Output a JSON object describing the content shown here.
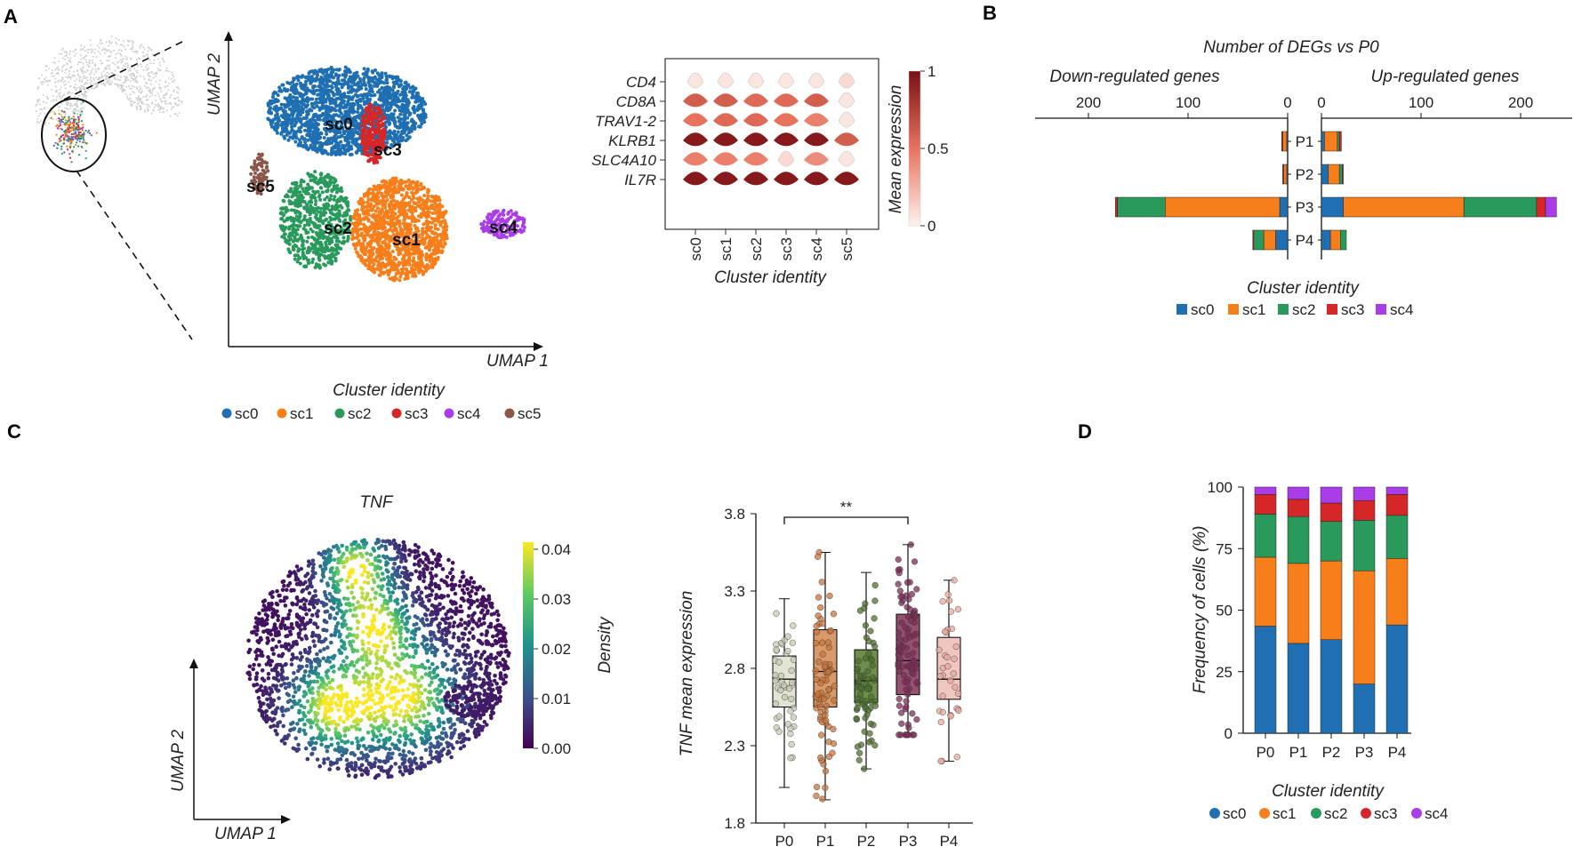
{
  "panel_labels": [
    "A",
    "B",
    "C",
    "D"
  ],
  "cluster_colors": {
    "sc0": "#1f6fb2",
    "sc1": "#f77f1b",
    "sc2": "#2a9a5c",
    "sc3": "#d62728",
    "sc4": "#a93ee8",
    "sc5": "#8c564b"
  },
  "chart_data": [
    {
      "id": "A_umap",
      "type": "scatter",
      "xlabel": "UMAP 1",
      "ylabel": "UMAP 2",
      "legend_title": "Cluster identity",
      "clusters": [
        "sc0",
        "sc1",
        "sc2",
        "sc3",
        "sc4",
        "sc5"
      ]
    },
    {
      "id": "A_violin",
      "type": "heatmap",
      "subtype": "stacked-violin",
      "genes": [
        "CD4",
        "CD8A",
        "TRAV1-2",
        "KLRB1",
        "SLC4A10",
        "IL7R"
      ],
      "clusters": [
        "sc0",
        "sc1",
        "sc2",
        "sc3",
        "sc4",
        "sc5"
      ],
      "mean_expression": [
        [
          0.05,
          0.05,
          0.05,
          0.05,
          0.05,
          0.1
        ],
        [
          0.6,
          0.6,
          0.55,
          0.55,
          0.6,
          0.05
        ],
        [
          0.5,
          0.55,
          0.55,
          0.5,
          0.45,
          0.05
        ],
        [
          0.95,
          0.95,
          0.95,
          0.95,
          0.95,
          0.6
        ],
        [
          0.45,
          0.45,
          0.45,
          0.1,
          0.4,
          0.05
        ],
        [
          0.95,
          0.95,
          0.95,
          0.95,
          0.95,
          0.95
        ]
      ],
      "xlabel": "Cluster identity",
      "colorbar_label": "Mean expression",
      "colorbar_ticks": [
        "0",
        "0.5",
        "1"
      ]
    },
    {
      "id": "B_degs",
      "type": "bar",
      "orientation": "horizontal",
      "title": "Number of DEGs vs P0",
      "left_title": "Down-regulated genes",
      "right_title": "Up-regulated genes",
      "down_ticks": [
        200,
        100,
        0
      ],
      "up_ticks": [
        0,
        100,
        200
      ],
      "xlim": [
        0,
        240
      ],
      "categories": [
        "P1",
        "P2",
        "P3",
        "P4"
      ],
      "series_order": [
        "sc0",
        "sc1",
        "sc2",
        "sc3",
        "sc4"
      ],
      "down": {
        "P1": [
          1,
          4,
          0,
          1,
          0
        ],
        "P2": [
          1,
          3,
          0,
          1,
          0
        ],
        "P3": [
          8,
          115,
          48,
          2,
          0
        ],
        "P4": [
          12,
          12,
          10,
          1,
          0
        ]
      },
      "up": {
        "P1": [
          3,
          13,
          2,
          2,
          0
        ],
        "P2": [
          7,
          11,
          3,
          1,
          0
        ],
        "P3": [
          22,
          121,
          73,
          9,
          11
        ],
        "P4": [
          9,
          10,
          6,
          0,
          0
        ]
      },
      "legend_title": "Cluster identity",
      "legend": [
        "sc0",
        "sc1",
        "sc2",
        "sc3",
        "sc4"
      ]
    },
    {
      "id": "C_density",
      "type": "scatter",
      "subtype": "density-umap",
      "title": "TNF",
      "xlabel": "UMAP 1",
      "ylabel": "UMAP 2",
      "colorbar_label": "Density",
      "colorbar_ticks": [
        "0.00",
        "0.01",
        "0.02",
        "0.03",
        "0.04"
      ],
      "range": [
        0,
        0.045
      ]
    },
    {
      "id": "C_box",
      "type": "scatter",
      "subtype": "box",
      "categories": [
        "P0",
        "P1",
        "P2",
        "P3",
        "P4"
      ],
      "ylabel": "TNF mean expression",
      "ylim": [
        1.8,
        3.8
      ],
      "yticks": [
        "1.8",
        "2.3",
        "2.8",
        "3.3",
        "3.8"
      ],
      "boxes": [
        {
          "q1": 2.55,
          "median": 2.73,
          "q3": 2.88,
          "lo": 2.03,
          "hi": 3.25,
          "n": 45
        },
        {
          "q1": 2.55,
          "median": 2.78,
          "q3": 3.05,
          "lo": 1.95,
          "hi": 3.55,
          "n": 75
        },
        {
          "q1": 2.58,
          "median": 2.72,
          "q3": 2.92,
          "lo": 2.15,
          "hi": 3.42,
          "n": 70
        },
        {
          "q1": 2.63,
          "median": 2.85,
          "q3": 3.15,
          "lo": 2.37,
          "hi": 3.6,
          "n": 95
        },
        {
          "q1": 2.6,
          "median": 2.73,
          "q3": 3.0,
          "lo": 2.2,
          "hi": 3.37,
          "n": 35
        }
      ],
      "fill_colors": [
        "#e3e4d4",
        "#d89a6a",
        "#6e8f4c",
        "#965070",
        "#f0c7bf"
      ],
      "point_colors": [
        "#c7c9b2",
        "#c8743a",
        "#4e6e2e",
        "#7a2e55",
        "#e8a89c"
      ],
      "significance": {
        "from": "P0",
        "to": "P3",
        "label": "**"
      }
    },
    {
      "id": "D_freq",
      "type": "bar",
      "subtype": "stacked",
      "categories": [
        "P0",
        "P1",
        "P2",
        "P3",
        "P4"
      ],
      "ylabel": "Frequency of cells (%)",
      "ylim": [
        0,
        100
      ],
      "yticks": [
        "0",
        "25",
        "50",
        "75",
        "100"
      ],
      "series": [
        {
          "name": "sc0",
          "values": [
            43.5,
            36.5,
            38,
            20,
            44
          ]
        },
        {
          "name": "sc1",
          "values": [
            28,
            32.5,
            32,
            46,
            27
          ]
        },
        {
          "name": "sc2",
          "values": [
            17.5,
            19,
            16,
            20.5,
            17.5
          ]
        },
        {
          "name": "sc3",
          "values": [
            8,
            7,
            7.5,
            8,
            8.5
          ]
        },
        {
          "name": "sc4",
          "values": [
            3,
            5,
            6.5,
            5.5,
            3
          ]
        }
      ],
      "legend_title": "Cluster identity",
      "legend": [
        "sc0",
        "sc1",
        "sc2",
        "sc3",
        "sc4"
      ]
    }
  ]
}
